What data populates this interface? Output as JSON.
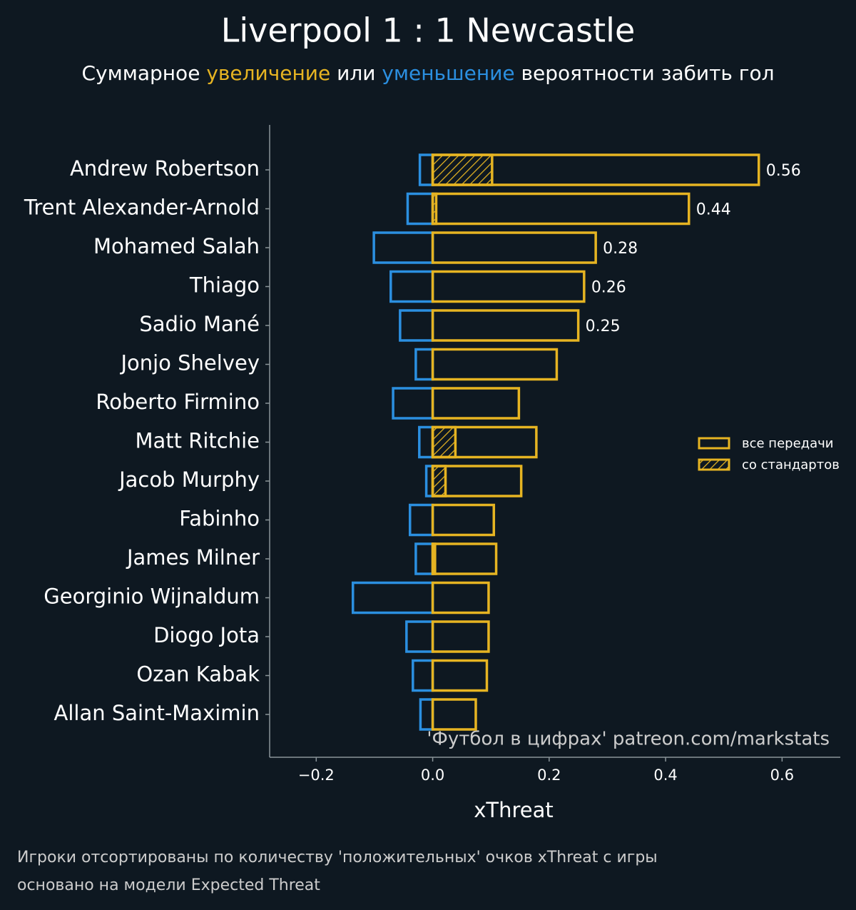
{
  "chart_data": {
    "type": "diverging-bar",
    "title": "Liverpool 1 : 1 Newcastle",
    "subtitle": [
      {
        "text": "Суммарное "
      },
      {
        "text": "увеличение",
        "color": "#e6b422"
      },
      {
        "text": " или "
      },
      {
        "text": "уменьшение",
        "color": "#2b8fe0"
      },
      {
        "text": " вероятности забить гол"
      }
    ],
    "categories": [
      "Andrew Robertson",
      "Trent Alexander-Arnold",
      "Mohamed Salah",
      "Thiago",
      "Sadio Mané",
      "Jonjo Shelvey",
      "Roberto Firmino",
      "Matt Ritchie",
      "Jacob Murphy",
      "Fabinho",
      "James Milner",
      "Georginio Wijnaldum",
      "Diogo Jota",
      "Ozan Kabak",
      "Allan Saint-Maximin"
    ],
    "series": [
      {
        "name": "все передачи",
        "color": "#e6b422",
        "values": [
          0.56,
          0.44,
          0.28,
          0.26,
          0.25,
          0.213,
          0.148,
          0.178,
          0.152,
          0.105,
          0.109,
          0.096,
          0.096,
          0.093,
          0.074
        ],
        "value_labels": [
          "0.56",
          "0.44",
          "0.28",
          "0.26",
          "0.25",
          null,
          null,
          null,
          null,
          null,
          null,
          null,
          null,
          null,
          null
        ]
      },
      {
        "name": "со стандартов",
        "color": "#e6b422",
        "hatch": true,
        "values": [
          0.102,
          0.006,
          null,
          null,
          null,
          null,
          null,
          0.039,
          0.022,
          null,
          0.004,
          null,
          null,
          null,
          null
        ]
      }
    ],
    "negative": {
      "color": "#2b8fe0",
      "values": [
        -0.022,
        -0.043,
        -0.101,
        -0.072,
        -0.056,
        -0.029,
        -0.068,
        -0.023,
        -0.011,
        -0.039,
        -0.029,
        -0.137,
        -0.045,
        -0.034,
        -0.021
      ]
    },
    "xlabel": "xThreat",
    "xlim": [
      -0.28,
      0.7
    ],
    "xticks": [
      {
        "value": -0.2,
        "label": "−0.2"
      },
      {
        "value": 0,
        "label": "0.0"
      },
      0.2,
      0.4,
      0.6
    ],
    "legend": "right",
    "watermark": "'Футбол в цифрах' patreon.com/markstats",
    "notes": [
      "Игроки отсортированы по количеству 'положительных' очков xThreat с игры",
      "основано на модели Expected Threat"
    ]
  }
}
